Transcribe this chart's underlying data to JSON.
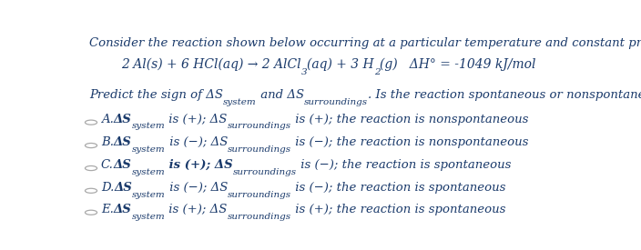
{
  "bg_color": "#ffffff",
  "text_color": "#1a3a6b",
  "title_line": "Consider the reaction shown below occurring at a particular temperature and constant pressure:",
  "reaction_parts": [
    {
      "t": "2 Al(s) + 6 HCl(aq) → 2 AlCl",
      "sub": false
    },
    {
      "t": "3",
      "sub": true
    },
    {
      "t": "(aq) + 3 H",
      "sub": false
    },
    {
      "t": "2",
      "sub": true
    },
    {
      "t": "(g)   ΔH° = -1049 kJ/mol",
      "sub": false
    }
  ],
  "options": [
    {
      "label": "A.",
      "parts": [
        {
          "t": "ΔS",
          "sub": false,
          "bold": true
        },
        {
          "t": "system",
          "sub": true,
          "bold": false
        },
        {
          "t": " is (+); ΔS",
          "sub": false,
          "bold": false
        },
        {
          "t": "surroundings",
          "sub": true,
          "bold": false
        },
        {
          "t": " is (+); the reaction is nonspontaneous",
          "sub": false,
          "bold": false
        }
      ]
    },
    {
      "label": "B.",
      "parts": [
        {
          "t": "ΔS",
          "sub": false,
          "bold": true
        },
        {
          "t": "system",
          "sub": true,
          "bold": false
        },
        {
          "t": " is (−); ΔS",
          "sub": false,
          "bold": false
        },
        {
          "t": "surroundings",
          "sub": true,
          "bold": false
        },
        {
          "t": " is (−); the reaction is nonspontaneous",
          "sub": false,
          "bold": false
        }
      ]
    },
    {
      "label": "C.",
      "parts": [
        {
          "t": "ΔS",
          "sub": false,
          "bold": true
        },
        {
          "t": "system",
          "sub": true,
          "bold": false
        },
        {
          "t": " is (+); ΔS",
          "sub": false,
          "bold": true
        },
        {
          "t": "surroundings",
          "sub": true,
          "bold": false
        },
        {
          "t": " is (−); the reaction is spontaneous",
          "sub": false,
          "bold": false
        }
      ]
    },
    {
      "label": "D.",
      "parts": [
        {
          "t": "ΔS",
          "sub": false,
          "bold": true
        },
        {
          "t": "system",
          "sub": true,
          "bold": false
        },
        {
          "t": " is (−); ΔS",
          "sub": false,
          "bold": false
        },
        {
          "t": "surroundings",
          "sub": true,
          "bold": false
        },
        {
          "t": " is (−); the reaction is spontaneous",
          "sub": false,
          "bold": false
        }
      ]
    },
    {
      "label": "E.",
      "parts": [
        {
          "t": "ΔS",
          "sub": false,
          "bold": true
        },
        {
          "t": "system",
          "sub": true,
          "bold": false
        },
        {
          "t": " is (+); ΔS",
          "sub": false,
          "bold": false
        },
        {
          "t": "surroundings",
          "sub": true,
          "bold": false
        },
        {
          "t": " is (+); the reaction is spontaneous",
          "sub": false,
          "bold": false
        }
      ]
    }
  ],
  "q_parts": [
    {
      "t": "Predict the sign of ΔS",
      "sub": false
    },
    {
      "t": "system",
      "sub": true
    },
    {
      "t": " and ΔS",
      "sub": false
    },
    {
      "t": "surroundings",
      "sub": true
    },
    {
      "t": ". Is the reaction spontaneous or nonspontaneous?",
      "sub": false
    }
  ],
  "circle_color": "#aaaaaa",
  "fs_main": 9.5,
  "fs_sub": 7.5,
  "fs_rxn": 10.0,
  "fs_opt": 9.5,
  "fs_opt_bold": 10.0,
  "fs_opt_sub": 7.5
}
